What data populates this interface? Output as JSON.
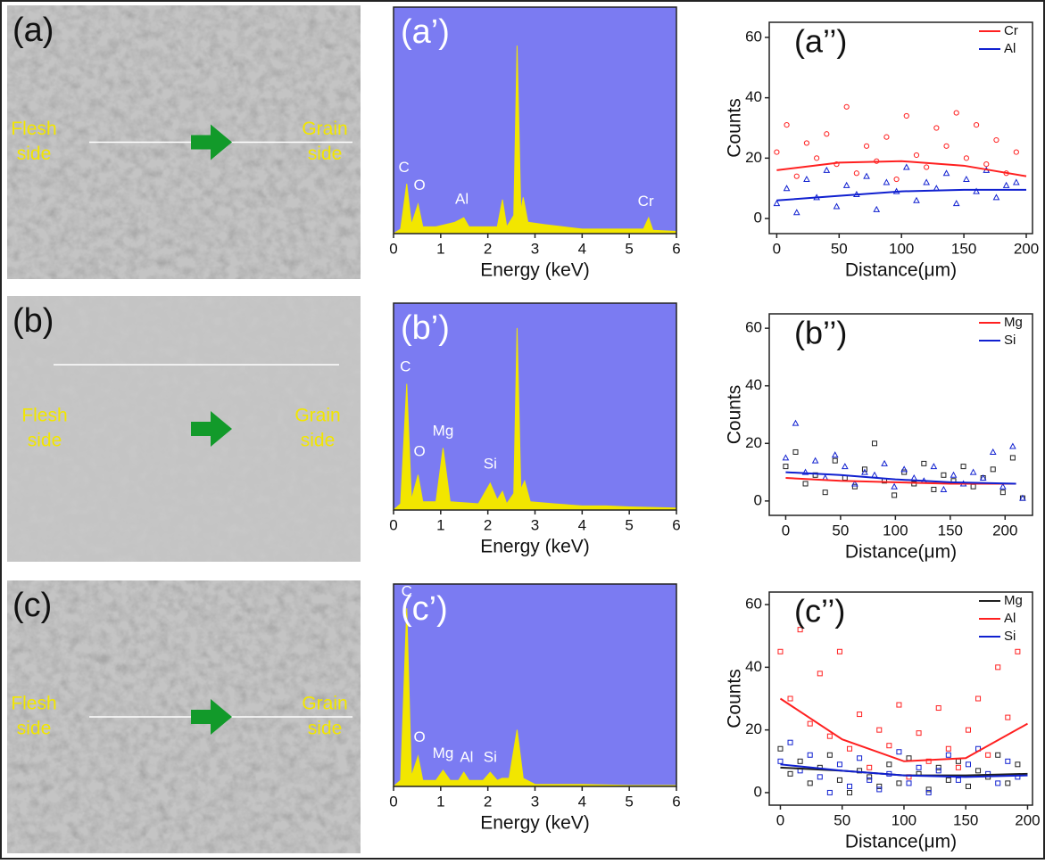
{
  "images": [
    {
      "label": "(a)",
      "left_text": [
        "Flesh",
        "side"
      ],
      "right_text": [
        "Grain",
        "side"
      ]
    },
    {
      "label": "(b)",
      "left_text": [
        "Flesh",
        "side"
      ],
      "right_text": [
        "Grain",
        "side"
      ]
    },
    {
      "label": "(c)",
      "left_text": [
        "Flesh",
        "side"
      ],
      "right_text": [
        "Grain",
        "side"
      ]
    }
  ],
  "chart_data": [
    {
      "type": "area",
      "label": "(a’)",
      "x_label": "Energy (keV)",
      "color": "#f2e600",
      "background": "#7b7bf2",
      "xlim": [
        0,
        6
      ],
      "xticks": [
        0,
        1,
        2,
        3,
        4,
        5,
        6
      ],
      "ylim": [
        0,
        100
      ],
      "x": [
        0,
        0.15,
        0.28,
        0.38,
        0.52,
        0.62,
        0.9,
        1.3,
        1.49,
        1.6,
        2.2,
        2.31,
        2.4,
        2.55,
        2.62,
        2.7,
        2.75,
        2.85,
        3.2,
        3.6,
        4,
        4.5,
        5.3,
        5.41,
        5.5,
        6
      ],
      "values": [
        0,
        2,
        22,
        4,
        13,
        3,
        3,
        5,
        7,
        3,
        3,
        15,
        3,
        8,
        83,
        10,
        16,
        5,
        4,
        3,
        2,
        2,
        2,
        7,
        1.5,
        1
      ],
      "annotations": [
        {
          "text": "C",
          "x": 0.22,
          "y": 29
        },
        {
          "text": "O",
          "x": 0.55,
          "y": 21
        },
        {
          "text": "Al",
          "x": 1.45,
          "y": 15
        },
        {
          "text": "Cr",
          "x": 5.35,
          "y": 14
        }
      ]
    },
    {
      "type": "area",
      "label": "(b’)",
      "x_label": "Energy (keV)",
      "color": "#f2e600",
      "background": "#7b7bf2",
      "xlim": [
        0,
        6
      ],
      "xticks": [
        0,
        1,
        2,
        3,
        4,
        5,
        6
      ],
      "ylim": [
        0,
        100
      ],
      "x": [
        0,
        0.15,
        0.28,
        0.38,
        0.52,
        0.62,
        0.9,
        1.05,
        1.2,
        1.8,
        2.05,
        2.2,
        2.31,
        2.4,
        2.55,
        2.62,
        2.7,
        2.78,
        2.9,
        3.4,
        4,
        4.5,
        5,
        6
      ],
      "values": [
        0,
        3,
        61,
        5,
        17,
        4,
        4,
        30,
        4,
        3,
        13,
        5,
        9,
        3,
        8,
        88,
        10,
        14,
        4,
        3,
        2,
        2,
        1.5,
        1
      ],
      "annotations": [
        {
          "text": "C",
          "x": 0.25,
          "y": 69
        },
        {
          "text": "O",
          "x": 0.55,
          "y": 28
        },
        {
          "text": "Mg",
          "x": 1.05,
          "y": 38
        },
        {
          "text": "Si",
          "x": 2.05,
          "y": 22
        }
      ]
    },
    {
      "type": "area",
      "label": "(c’)",
      "x_label": "Energy (keV)",
      "color": "#f2e600",
      "background": "#7b7bf2",
      "xlim": [
        0,
        6
      ],
      "xticks": [
        0,
        1,
        2,
        3,
        4,
        5,
        6
      ],
      "ylim": [
        0,
        100
      ],
      "x": [
        0,
        0.15,
        0.28,
        0.38,
        0.52,
        0.62,
        0.9,
        1.05,
        1.2,
        1.38,
        1.49,
        1.6,
        1.9,
        2.05,
        2.2,
        2.3,
        2.45,
        2.62,
        2.75,
        3,
        4,
        5,
        6
      ],
      "values": [
        0,
        3,
        88,
        5,
        15,
        3,
        3,
        8,
        3,
        3,
        7,
        3,
        3,
        7,
        3,
        4,
        4,
        28,
        4,
        1,
        1,
        0.5,
        0.5
      ],
      "annotations": [
        {
          "text": "C",
          "x": 0.28,
          "y": 96
        },
        {
          "text": "O",
          "x": 0.55,
          "y": 24
        },
        {
          "text": "Mg",
          "x": 1.05,
          "y": 16
        },
        {
          "text": "Al",
          "x": 1.55,
          "y": 14
        },
        {
          "text": "Si",
          "x": 2.05,
          "y": 14
        }
      ]
    },
    {
      "type": "scatter",
      "label": "(a’’)",
      "x_label": "Distance(μm)",
      "y_label": "Counts",
      "xlim": [
        -6,
        205
      ],
      "ylim": [
        -5,
        65
      ],
      "xticks": [
        0,
        50,
        100,
        150,
        200
      ],
      "yticks": [
        0,
        20,
        40,
        60
      ],
      "x": [
        0,
        8,
        16,
        24,
        32,
        40,
        48,
        56,
        64,
        72,
        80,
        88,
        96,
        104,
        112,
        120,
        128,
        136,
        144,
        152,
        160,
        168,
        176,
        184,
        192
      ],
      "series": [
        {
          "name": "Cr",
          "color": "#ff2020",
          "marker": "circle",
          "marker_color": "#ff2020",
          "values": [
            22,
            31,
            14,
            25,
            20,
            28,
            18,
            37,
            15,
            24,
            19,
            27,
            13,
            34,
            21,
            17,
            30,
            24,
            35,
            20,
            31,
            18,
            26,
            15,
            22
          ],
          "fit_x": [
            0,
            50,
            100,
            150,
            200
          ],
          "fit_values": [
            16,
            18.5,
            19,
            17.5,
            14
          ]
        },
        {
          "name": "Al",
          "color": "#1020d0",
          "marker": "triangle",
          "marker_color": "#1020d0",
          "values": [
            5,
            10,
            2,
            13,
            7,
            16,
            4,
            11,
            8,
            14,
            3,
            12,
            9,
            17,
            6,
            12,
            10,
            15,
            5,
            13,
            9,
            16,
            7,
            11,
            12
          ],
          "fit_x": [
            0,
            50,
            100,
            150,
            200
          ],
          "fit_values": [
            6,
            7.5,
            9,
            9.5,
            9.5
          ]
        }
      ]
    },
    {
      "type": "scatter",
      "label": "(b’’)",
      "x_label": "Distance(μm)",
      "y_label": "Counts",
      "xlim": [
        -15,
        225
      ],
      "ylim": [
        -5,
        65
      ],
      "xticks": [
        0,
        50,
        100,
        150,
        200
      ],
      "yticks": [
        0,
        20,
        40,
        60
      ],
      "x": [
        0,
        9,
        18,
        27,
        36,
        45,
        54,
        63,
        72,
        81,
        90,
        99,
        108,
        117,
        126,
        135,
        144,
        153,
        162,
        171,
        180,
        189,
        198,
        207,
        216
      ],
      "series": [
        {
          "name": "Mg",
          "color": "#ff2020",
          "marker": "square",
          "marker_color": "#202020",
          "values": [
            12,
            17,
            6,
            9,
            3,
            14,
            8,
            5,
            11,
            20,
            7,
            2,
            10,
            6,
            13,
            4,
            9,
            7,
            12,
            5,
            8,
            11,
            3,
            15,
            1
          ],
          "fit_x": [
            0,
            50,
            100,
            150,
            210
          ],
          "fit_values": [
            8,
            7,
            6.5,
            6,
            6
          ]
        },
        {
          "name": "Si",
          "color": "#1020d0",
          "marker": "triangle",
          "marker_color": "#1020d0",
          "values": [
            15,
            27,
            10,
            14,
            8,
            16,
            12,
            6,
            10,
            9,
            13,
            5,
            11,
            8,
            7,
            12,
            4,
            9,
            6,
            10,
            8,
            17,
            5,
            19,
            1
          ],
          "fit_x": [
            0,
            50,
            100,
            150,
            210
          ],
          "fit_values": [
            10,
            9,
            7.5,
            6.5,
            6
          ]
        }
      ]
    },
    {
      "type": "scatter",
      "label": "(c’’)",
      "x_label": "Distance(μm)",
      "y_label": "Counts",
      "xlim": [
        -9,
        204
      ],
      "ylim": [
        -4,
        64
      ],
      "xticks": [
        0,
        50,
        100,
        150,
        200
      ],
      "yticks": [
        0,
        20,
        40,
        60
      ],
      "x": [
        0,
        8,
        16,
        24,
        32,
        40,
        48,
        56,
        64,
        72,
        80,
        88,
        96,
        104,
        112,
        120,
        128,
        136,
        144,
        152,
        160,
        168,
        176,
        184,
        192
      ],
      "series": [
        {
          "name": "Mg",
          "color": "#202020",
          "marker": "square",
          "marker_color": "#202020",
          "values": [
            14,
            6,
            10,
            3,
            8,
            12,
            4,
            0,
            7,
            5,
            2,
            9,
            3,
            11,
            6,
            1,
            8,
            4,
            10,
            2,
            7,
            5,
            12,
            3,
            9
          ],
          "fit_x": [
            0,
            50,
            100,
            150,
            200
          ],
          "fit_values": [
            8,
            7,
            5.5,
            5.5,
            6
          ]
        },
        {
          "name": "Al",
          "color": "#ff2020",
          "marker": "square",
          "marker_color": "#ff2020",
          "values": [
            45,
            30,
            52,
            22,
            38,
            18,
            45,
            14,
            25,
            8,
            20,
            15,
            28,
            5,
            19,
            10,
            27,
            14,
            8,
            20,
            30,
            12,
            40,
            24,
            45
          ],
          "fit_x": [
            0,
            50,
            100,
            150,
            200
          ],
          "fit_values": [
            30,
            17,
            10,
            11,
            22
          ]
        },
        {
          "name": "Si",
          "color": "#1020d0",
          "marker": "square",
          "marker_color": "#1020d0",
          "values": [
            10,
            16,
            7,
            12,
            5,
            0,
            9,
            2,
            11,
            4,
            1,
            6,
            13,
            3,
            8,
            0,
            7,
            12,
            4,
            9,
            14,
            6,
            3,
            10,
            5
          ],
          "fit_x": [
            0,
            50,
            100,
            150,
            200
          ],
          "fit_values": [
            9,
            7,
            5.5,
            5,
            5.5
          ]
        }
      ]
    }
  ]
}
